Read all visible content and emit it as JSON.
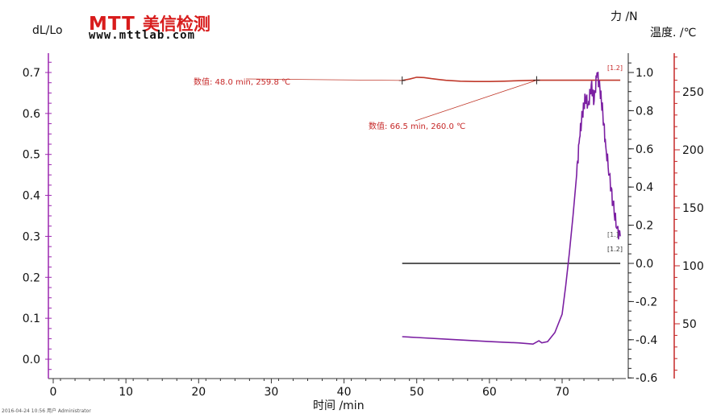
{
  "logo": {
    "mark": "MTT",
    "name": "美信检测",
    "url": "www.mttlab.com"
  },
  "labels": {
    "left_axis": "dL/Lo",
    "right_axis": "力 /N",
    "temp_axis": "温度. /℃",
    "x_axis": "时间 /min"
  },
  "footer": "2016-04-24 10:56 用户 Administrator",
  "chart_data": {
    "type": "line",
    "x": {
      "label": "时间 /min",
      "range": [
        -1,
        78
      ],
      "ticks": [
        0,
        10,
        20,
        30,
        40,
        50,
        60,
        70
      ]
    },
    "axes": {
      "left": {
        "label": "dL/Lo",
        "range": [
          -0.05,
          0.75
        ],
        "ticks": [
          0.0,
          0.1,
          0.2,
          0.3,
          0.4,
          0.5,
          0.6,
          0.7
        ]
      },
      "force": {
        "label": "力 /N",
        "range": [
          -0.6,
          1.1
        ],
        "ticks": [
          -0.6,
          -0.4,
          -0.2,
          0.0,
          0.2,
          0.4,
          0.6,
          0.8,
          1.0
        ]
      },
      "temp": {
        "label": "温度. /℃",
        "range": [
          0,
          283
        ],
        "ticks": [
          50,
          100,
          150,
          200,
          250
        ]
      }
    },
    "series": [
      {
        "axis": "temp",
        "color": "#c0392b",
        "x": [
          48,
          49,
          50,
          51,
          52,
          53,
          54,
          56,
          58,
          60,
          62,
          64,
          66.5,
          70,
          75,
          78
        ],
        "y": [
          259.8,
          261,
          262.6,
          262.3,
          261.4,
          260.6,
          259.9,
          259.2,
          258.9,
          258.9,
          259.2,
          259.6,
          260.0,
          260.0,
          260.0,
          260.0
        ]
      },
      {
        "axis": "force",
        "color": "#222222",
        "x": [
          48,
          78
        ],
        "y": [
          0.0,
          0.0
        ]
      },
      {
        "axis": "left",
        "color": "#7b1fa2",
        "x": [
          48,
          50,
          55,
          60,
          64,
          66,
          66.8,
          67.2,
          68,
          69,
          70,
          70.5,
          71,
          71.5,
          72,
          72.4,
          72.8,
          73.2,
          73.6,
          74,
          74.4,
          74.8,
          75.2,
          75.6,
          76,
          76.5,
          77,
          77.5,
          78
        ],
        "y": [
          0.055,
          0.053,
          0.048,
          0.043,
          0.04,
          0.037,
          0.045,
          0.04,
          0.043,
          0.065,
          0.11,
          0.18,
          0.26,
          0.35,
          0.45,
          0.54,
          0.6,
          0.64,
          0.62,
          0.67,
          0.63,
          0.7,
          0.66,
          0.6,
          0.52,
          0.45,
          0.38,
          0.32,
          0.3
        ]
      }
    ],
    "annotations": [
      {
        "text": "数值: 48.0 min, 259.8 ℃",
        "x": 48.0,
        "y": 259.8,
        "axis": "temp"
      },
      {
        "text": "数值: 66.5 min, 260.0 ℃",
        "x": 66.5,
        "y": 260.0,
        "axis": "temp"
      }
    ],
    "end_markers": [
      "[1.2]",
      "[1.]",
      "[1.2]"
    ]
  }
}
